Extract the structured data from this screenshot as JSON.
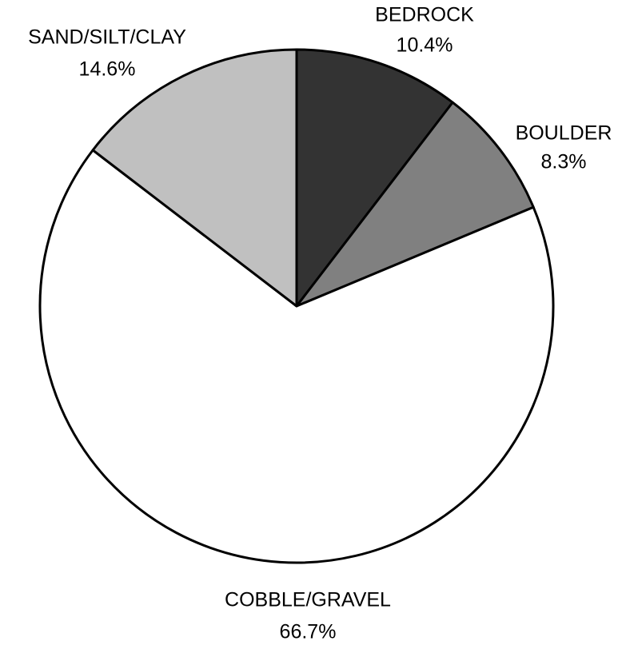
{
  "chart_data": {
    "type": "pie",
    "categories": [
      "BEDROCK",
      "BOULDER",
      "COBBLE/GRAVEL",
      "SAND/SILT/CLAY"
    ],
    "values": [
      10.4,
      8.3,
      66.7,
      14.6
    ],
    "value_labels": [
      "10.4%",
      "8.3%",
      "66.7%",
      "14.6%"
    ],
    "colors": [
      "#333333",
      "#808080",
      "#ffffff",
      "#c0c0c0"
    ]
  }
}
